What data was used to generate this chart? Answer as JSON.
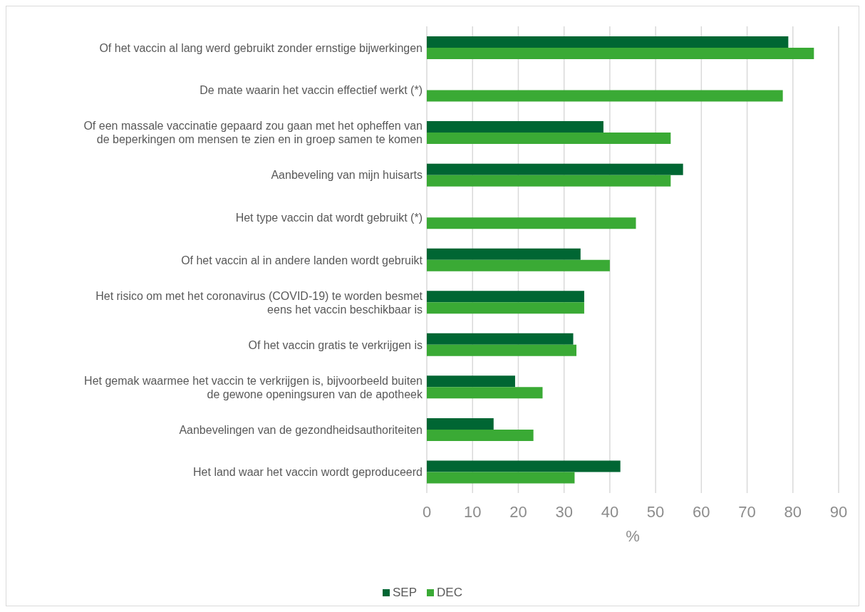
{
  "chart_data": {
    "type": "bar",
    "orientation": "horizontal",
    "xlabel": "%",
    "categories": [
      "Of het vaccin al lang werd gebruikt zonder ernstige bijwerkingen",
      "De mate waarin het vaccin effectief werkt (*)",
      "Of een massale vaccinatie gepaard zou gaan met het opheffen van\nde beperkingen om mensen te zien en in groep samen te komen",
      "Aanbeveling van mijn huisarts",
      "Het type vaccin dat wordt gebruikt (*)",
      "Of het vaccin al in andere landen wordt gebruikt",
      "Het risico om met het coronavirus (COVID-19) te worden besmet\neens het vaccin beschikbaar is",
      "Of het vaccin gratis te verkrijgen is",
      "Het gemak waarmee het vaccin te verkrijgen is, bijvoorbeeld buiten\nde gewone openingsuren van de apotheek",
      "Aanbevelingen van de gezondheidsauthoriteiten",
      "Het land waar het vaccin wordt geproduceerd"
    ],
    "series": [
      {
        "name": "SEP",
        "color": "#006633",
        "values": [
          79.0,
          null,
          38.6,
          56.0,
          null,
          33.6,
          34.4,
          32.0,
          19.3,
          14.6,
          42.3
        ]
      },
      {
        "name": "DEC",
        "color": "#3aaa35",
        "values": [
          84.6,
          77.8,
          53.3,
          53.3,
          45.7,
          40.0,
          34.4,
          32.7,
          25.3,
          23.3,
          32.3
        ]
      }
    ],
    "xlim": [
      0,
      90
    ],
    "xticks": [
      0,
      10,
      20,
      30,
      40,
      50,
      60,
      70,
      80,
      90
    ],
    "grid": "x",
    "legend": "bottom"
  }
}
